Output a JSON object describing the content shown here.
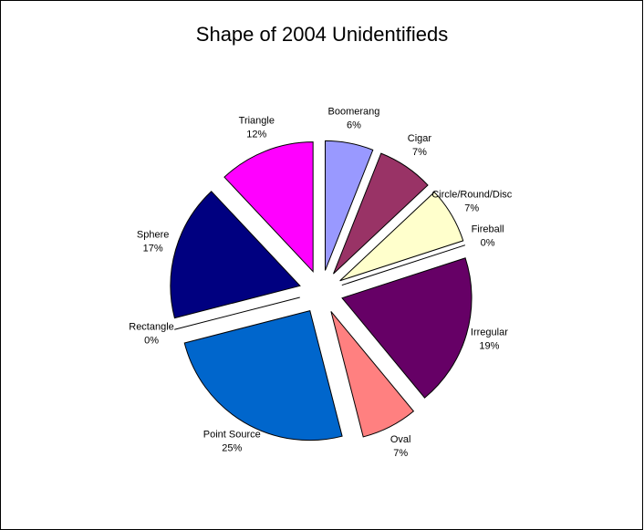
{
  "chart_data": {
    "type": "pie",
    "title": "Shape of 2004 Unidentifieds",
    "categories": [
      "Boomerang",
      "Cigar",
      "Circle/Round/Disc",
      "Fireball",
      "Irregular",
      "Oval",
      "Point Source",
      "Rectangle",
      "Sphere",
      "Triangle"
    ],
    "values": [
      6,
      7,
      7,
      0,
      19,
      7,
      25,
      0,
      17,
      12
    ],
    "value_labels": [
      "6%",
      "7%",
      "7%",
      "0%",
      "19%",
      "7%",
      "25%",
      "0%",
      "17%",
      "12%"
    ],
    "colors": [
      "#9999ff",
      "#993366",
      "#ffffcc",
      "#ccffff",
      "#660066",
      "#ff8080",
      "#0066cc",
      "#c0c0c0",
      "#000080",
      "#ff00ff"
    ]
  }
}
